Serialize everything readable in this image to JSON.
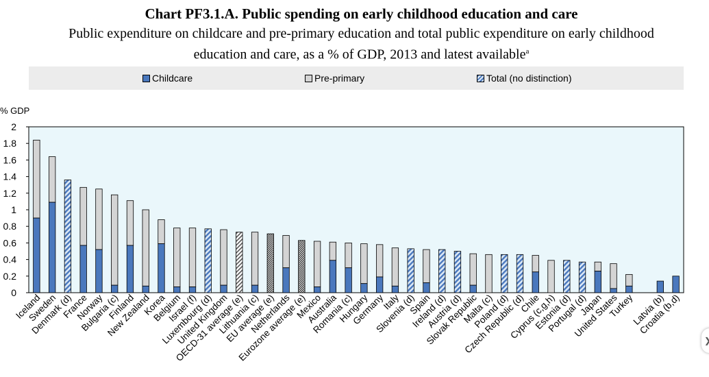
{
  "chart_data": {
    "type": "bar",
    "stacked": true,
    "title": "Chart PF3.1.A. Public spending on early childhood education and care",
    "subtitle_line1": "Public expenditure on childcare and pre-primary education and total public expenditure on early childhood",
    "subtitle_line2": "education and care, as a % of GDP, 2013 and latest available",
    "subtitle_sup": "a",
    "ylabel": "% GDP",
    "ylim": [
      0,
      2
    ],
    "yticks": [
      "0",
      "0.2",
      "0.4",
      "0.6",
      "0.8",
      "1",
      "1.2",
      "1.4",
      "1.6",
      "1.8",
      "2"
    ],
    "legend": [
      {
        "name": "Childcare",
        "kind": "childcare"
      },
      {
        "name": "Pre-primary",
        "kind": "preprimary"
      },
      {
        "name": "Total (no distinction)",
        "kind": "total"
      }
    ],
    "colors": {
      "childcare": "#4a78bd",
      "preprimary": "#d4d4d4",
      "total_stripe": "#4a78bd",
      "total_bg": "#dbe8f5",
      "plot_bg": "#eaf7fb"
    },
    "categories": [
      {
        "label": "Iceland",
        "childcare": 0.9,
        "preprimary": 0.94
      },
      {
        "label": "Sweden",
        "childcare": 1.09,
        "preprimary": 0.55
      },
      {
        "label": "Denmark (d)",
        "total": 1.36
      },
      {
        "label": "France",
        "childcare": 0.57,
        "preprimary": 0.7
      },
      {
        "label": "Norway",
        "childcare": 0.52,
        "preprimary": 0.73
      },
      {
        "label": "Bulgaria (c)",
        "childcare": 0.09,
        "preprimary": 1.09
      },
      {
        "label": "Finland",
        "childcare": 0.57,
        "preprimary": 0.54
      },
      {
        "label": "New Zealand",
        "childcare": 0.08,
        "preprimary": 0.92
      },
      {
        "label": "Korea",
        "childcare": 0.59,
        "preprimary": 0.29
      },
      {
        "label": "Belgium",
        "childcare": 0.07,
        "preprimary": 0.71
      },
      {
        "label": "Israel (f)",
        "childcare": 0.07,
        "preprimary": 0.71
      },
      {
        "label": "Luxembourg (d)",
        "total": 0.77
      },
      {
        "label": "United Kingdom",
        "childcare": 0.09,
        "preprimary": 0.67
      },
      {
        "label": "OECD-31 average (e)",
        "total": 0.73,
        "pattern": "light-hatch"
      },
      {
        "label": "Lithuania (c)",
        "childcare": 0.09,
        "preprimary": 0.64
      },
      {
        "label": "EU average (e)",
        "total": 0.71,
        "pattern": "dark-check"
      },
      {
        "label": "Netherlands",
        "childcare": 0.3,
        "preprimary": 0.39
      },
      {
        "label": "Eurozone average (e)",
        "total": 0.63,
        "pattern": "dark-check"
      },
      {
        "label": "Mexico",
        "childcare": 0.07,
        "preprimary": 0.55
      },
      {
        "label": "Australia",
        "childcare": 0.39,
        "preprimary": 0.22
      },
      {
        "label": "Romania (c)",
        "childcare": 0.3,
        "preprimary": 0.3
      },
      {
        "label": "Hungary",
        "childcare": 0.11,
        "preprimary": 0.48
      },
      {
        "label": "Germany",
        "childcare": 0.19,
        "preprimary": 0.39
      },
      {
        "label": "Italy",
        "childcare": 0.08,
        "preprimary": 0.46
      },
      {
        "label": "Slovenia (d)",
        "total": 0.53
      },
      {
        "label": "Spain",
        "childcare": 0.12,
        "preprimary": 0.4
      },
      {
        "label": "Ireland (d)",
        "total": 0.52
      },
      {
        "label": "Austria (d)",
        "total": 0.5
      },
      {
        "label": "Slovak Republic",
        "childcare": 0.09,
        "preprimary": 0.38
      },
      {
        "label": "Malta (c)",
        "childcare": 0.0,
        "preprimary": 0.46
      },
      {
        "label": "Poland (d)",
        "total": 0.46
      },
      {
        "label": "Czech Republic (d)",
        "total": 0.46
      },
      {
        "label": "Chile",
        "childcare": 0.25,
        "preprimary": 0.2
      },
      {
        "label": "Cyprus (c,g,h)",
        "childcare": 0.0,
        "preprimary": 0.39
      },
      {
        "label": "Estonia (d)",
        "total": 0.39
      },
      {
        "label": "Portugal (d)",
        "total": 0.37
      },
      {
        "label": "Japan",
        "childcare": 0.26,
        "preprimary": 0.11
      },
      {
        "label": "United States",
        "childcare": 0.05,
        "preprimary": 0.3
      },
      {
        "label": "Turkey",
        "childcare": 0.08,
        "preprimary": 0.14
      },
      {
        "label": "",
        "gap": true
      },
      {
        "label": "Latvia (b)",
        "childcare": 0.14
      },
      {
        "label": "Croatia (b,d)",
        "childcare": 0.2
      }
    ]
  }
}
